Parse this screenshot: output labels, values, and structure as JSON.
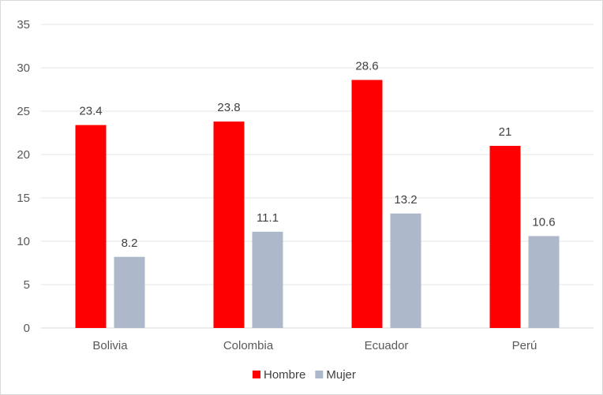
{
  "chart_data": {
    "type": "bar",
    "title": "",
    "xlabel": "",
    "ylabel": "",
    "categories": [
      "Bolivia",
      "Colombia",
      "Ecuador",
      "Perú"
    ],
    "series": [
      {
        "name": "Hombre",
        "values": [
          23.4,
          23.8,
          28.6,
          21
        ],
        "labels": [
          "23.4",
          "23.8",
          "28.6",
          "21"
        ],
        "color": "#ff0000"
      },
      {
        "name": "Mujer",
        "values": [
          8.2,
          11.1,
          13.2,
          10.6
        ],
        "labels": [
          "8.2",
          "11.1",
          "13.2",
          "10.6"
        ],
        "color": "#adb9ca"
      }
    ],
    "ylim": [
      0,
      35
    ],
    "yticks": [
      "0",
      "5",
      "10",
      "15",
      "20",
      "25",
      "30",
      "35"
    ],
    "grid": true,
    "legend": "bottom"
  }
}
